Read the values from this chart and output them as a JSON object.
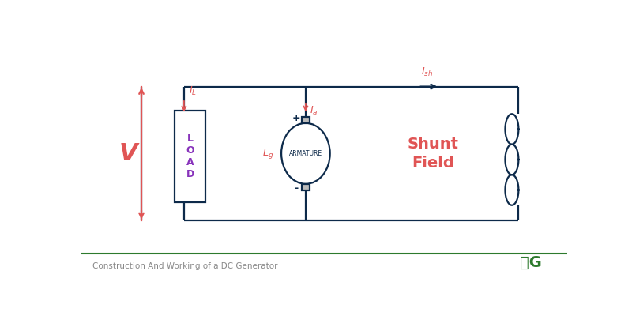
{
  "bg_color": "#ffffff",
  "circuit_color": "#0d2a4a",
  "red_color": "#e05555",
  "purple_color": "#8833bb",
  "green_color": "#2d7a2d",
  "footer_text": "Construction And Working of a DC Generator",
  "footer_color": "#888888",
  "load_text": "L\nO\nA\nD",
  "armature_text": "ARMATURE",
  "shunt_text": "Shunt\nField",
  "V_label": "V",
  "plus_label": "+",
  "minus_label": "-",
  "lw": 1.6,
  "figw": 8.0,
  "figh": 4.0,
  "dpi": 100
}
